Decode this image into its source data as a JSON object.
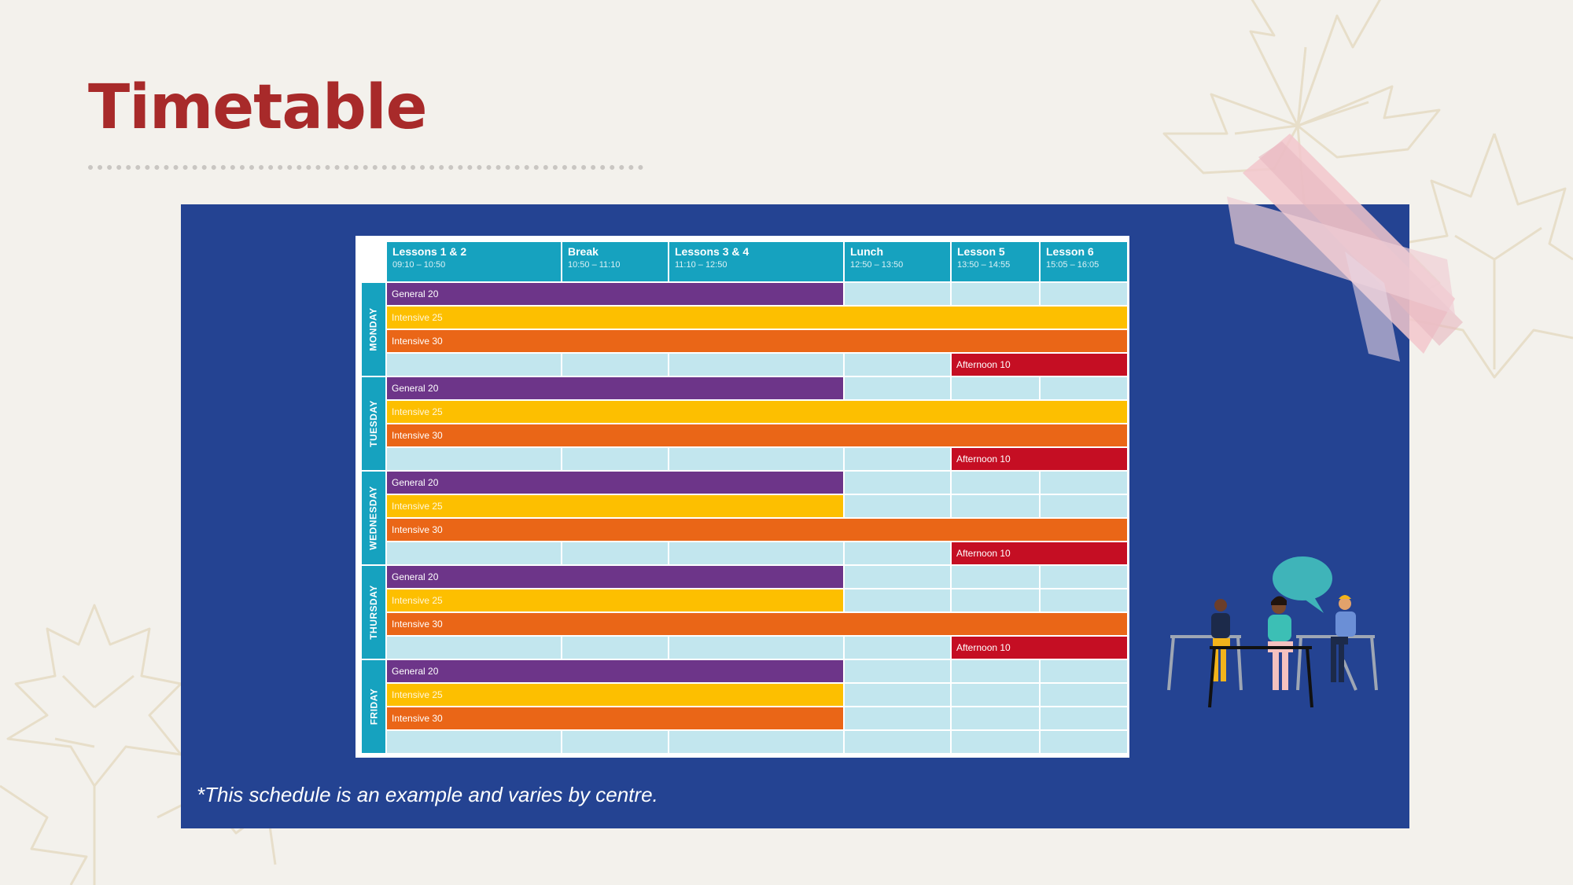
{
  "page": {
    "title": "Timetable"
  },
  "note": "*This schedule is an example and varies by centre.",
  "timetable": {
    "columns": [
      {
        "name": "Lessons 1 & 2",
        "time": "09:10 – 10:50"
      },
      {
        "name": "Break",
        "time": "10:50 – 11:10"
      },
      {
        "name": "Lessons 3 & 4",
        "time": "11:10 – 12:50"
      },
      {
        "name": "Lunch",
        "time": "12:50 – 13:50"
      },
      {
        "name": "Lesson 5",
        "time": "13:50 – 14:55"
      },
      {
        "name": "Lesson 6",
        "time": "15:05 – 16:05"
      }
    ],
    "days": [
      {
        "name": "MONDAY",
        "rows": [
          {
            "label": "General 20",
            "course": "general",
            "span": [
              1,
              3
            ]
          },
          {
            "label": "Intensive 25",
            "course": "int25",
            "span": [
              1,
              6
            ]
          },
          {
            "label": "Intensive 30",
            "course": "int30",
            "span": [
              1,
              6
            ]
          },
          {
            "label": "Afternoon 10",
            "course": "afternoon",
            "span": [
              5,
              6
            ]
          }
        ]
      },
      {
        "name": "TUESDAY",
        "rows": [
          {
            "label": "General 20",
            "course": "general",
            "span": [
              1,
              3
            ]
          },
          {
            "label": "Intensive 25",
            "course": "int25",
            "span": [
              1,
              6
            ]
          },
          {
            "label": "Intensive 30",
            "course": "int30",
            "span": [
              1,
              6
            ]
          },
          {
            "label": "Afternoon 10",
            "course": "afternoon",
            "span": [
              5,
              6
            ]
          }
        ]
      },
      {
        "name": "WEDNESDAY",
        "rows": [
          {
            "label": "General 20",
            "course": "general",
            "span": [
              1,
              3
            ]
          },
          {
            "label": "Intensive 25",
            "course": "int25",
            "span": [
              1,
              3
            ]
          },
          {
            "label": "Intensive 30",
            "course": "int30",
            "span": [
              1,
              6
            ]
          },
          {
            "label": "Afternoon 10",
            "course": "afternoon",
            "span": [
              5,
              6
            ]
          }
        ]
      },
      {
        "name": "THURSDAY",
        "rows": [
          {
            "label": "General 20",
            "course": "general",
            "span": [
              1,
              3
            ]
          },
          {
            "label": "Intensive 25",
            "course": "int25",
            "span": [
              1,
              3
            ]
          },
          {
            "label": "Intensive 30",
            "course": "int30",
            "span": [
              1,
              6
            ]
          },
          {
            "label": "Afternoon 10",
            "course": "afternoon",
            "span": [
              5,
              6
            ]
          }
        ]
      },
      {
        "name": "FRIDAY",
        "rows": [
          {
            "label": "General 20",
            "course": "general",
            "span": [
              1,
              3
            ]
          },
          {
            "label": "Intensive 25",
            "course": "int25",
            "span": [
              1,
              3
            ]
          },
          {
            "label": "Intensive 30",
            "course": "int30",
            "span": [
              1,
              3
            ]
          },
          null
        ]
      }
    ]
  },
  "colors": {
    "title": "#a82a2a",
    "panel": "#244392",
    "header": "#16a2bf",
    "cell": "#c2e6ee",
    "general": "#6d3589",
    "int25": "#fdbf00",
    "int30": "#ea6617",
    "afternoon": "#c50e23"
  },
  "icons": [
    "maple-leaf-decoration",
    "tape-decoration",
    "students-at-table-illustration"
  ]
}
